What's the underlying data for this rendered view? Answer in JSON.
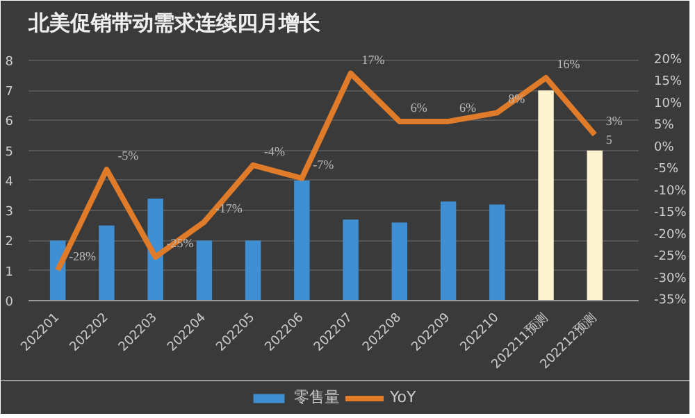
{
  "chart_data": {
    "type": "bar",
    "title": "北美促销带动需求连续四月增长",
    "categories": [
      "202201",
      "202202",
      "202203",
      "202204",
      "202205",
      "202206",
      "202207",
      "202208",
      "202209",
      "202210",
      "202211预测",
      "202212预测"
    ],
    "series": [
      {
        "name": "零售量",
        "color": "#3f8fd2",
        "colors": [
          "#3f8fd2",
          "#3f8fd2",
          "#3f8fd2",
          "#3f8fd2",
          "#3f8fd2",
          "#3f8fd2",
          "#3f8fd2",
          "#3f8fd2",
          "#3f8fd2",
          "#3f8fd2",
          "#fdf3cf",
          "#fdf3cf"
        ],
        "values": [
          2,
          2.5,
          3.4,
          2,
          2,
          4,
          2.7,
          2.6,
          3.3,
          3.2,
          7,
          5
        ],
        "value_labels": [
          null,
          null,
          null,
          null,
          null,
          null,
          null,
          null,
          null,
          null,
          null,
          "5"
        ]
      },
      {
        "name": "YoY",
        "type": "line",
        "color": "#e07b2a",
        "axis": "y2",
        "values": [
          -28,
          -5,
          -25,
          -17,
          -4,
          -7,
          17,
          6,
          6,
          8,
          16,
          3
        ],
        "value_labels": [
          "-28%",
          "-5%",
          "-25%",
          "-17%",
          "-4%",
          "-7%",
          "17%",
          "6%",
          "6%",
          "8%",
          "16%",
          "3%"
        ]
      }
    ],
    "ylim": [
      0,
      8.6
    ],
    "yticks": [
      0,
      1,
      2,
      3,
      4,
      5,
      6,
      7,
      8
    ],
    "y2lim": [
      -35,
      24.1
    ],
    "y2ticks": [
      {
        "value": -35,
        "label": "-35%"
      },
      {
        "value": -30,
        "label": "-30%"
      },
      {
        "value": -25,
        "label": "-25%"
      },
      {
        "value": -20,
        "label": "-20%"
      },
      {
        "value": -15,
        "label": "-15%"
      },
      {
        "value": -10,
        "label": "-10%"
      },
      {
        "value": -5,
        "label": "-5%"
      },
      {
        "value": 0,
        "label": "0%"
      },
      {
        "value": 5,
        "label": "5%"
      },
      {
        "value": 10,
        "label": "10%"
      },
      {
        "value": 15,
        "label": "15%"
      },
      {
        "value": 20,
        "label": "20%"
      }
    ],
    "grid": "y",
    "legend": "bottom",
    "line_style": "solid",
    "marker": "none"
  }
}
